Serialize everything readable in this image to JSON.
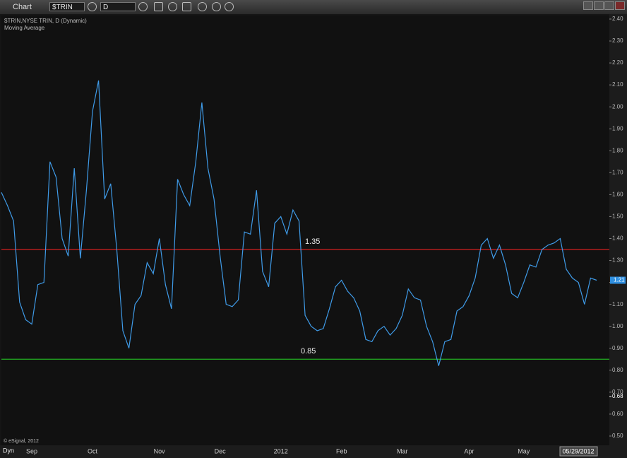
{
  "ui": {
    "window_title": "Chart",
    "symbol": "$TRIN",
    "interval": "D",
    "mode": "Dyn",
    "legend_lines": [
      "$TRIN,NYSE TRIN, D (Dynamic)",
      "Moving Average"
    ],
    "copyright": "© eSignal, 2012"
  },
  "chart_data": {
    "type": "line",
    "categories": [
      null,
      null,
      null,
      null,
      null,
      "Sep",
      null,
      null,
      null,
      null,
      null,
      null,
      null,
      null,
      null,
      "Oct",
      null,
      null,
      null,
      null,
      null,
      null,
      null,
      null,
      null,
      null,
      "Nov",
      null,
      null,
      null,
      null,
      null,
      null,
      null,
      null,
      null,
      "Dec",
      null,
      null,
      null,
      null,
      null,
      null,
      null,
      null,
      null,
      "2012",
      null,
      null,
      null,
      null,
      null,
      null,
      null,
      null,
      null,
      "Feb",
      null,
      null,
      null,
      null,
      null,
      null,
      null,
      null,
      null,
      "Mar",
      null,
      null,
      null,
      null,
      null,
      null,
      null,
      null,
      null,
      null,
      "Apr",
      null,
      null,
      null,
      null,
      null,
      null,
      null,
      null,
      "May",
      null,
      null,
      null,
      null,
      null,
      null,
      null,
      null,
      null,
      null,
      null,
      null
    ],
    "series": [
      {
        "name": "$TRIN,NYSE TRIN, D (Dynamic)",
        "color": "#3f9be8",
        "values": [
          1.61,
          1.55,
          1.48,
          1.11,
          1.03,
          1.01,
          1.19,
          1.2,
          1.75,
          1.68,
          1.4,
          1.32,
          1.72,
          1.31,
          1.62,
          1.98,
          2.12,
          1.58,
          1.65,
          1.35,
          0.98,
          0.9,
          1.1,
          1.14,
          1.29,
          1.24,
          1.4,
          1.19,
          1.08,
          1.67,
          1.6,
          1.55,
          1.75,
          2.02,
          1.72,
          1.58,
          1.32,
          1.1,
          1.09,
          1.12,
          1.43,
          1.42,
          1.62,
          1.25,
          1.18,
          1.47,
          1.5,
          1.42,
          1.53,
          1.48,
          1.05,
          1.0,
          0.98,
          0.99,
          1.08,
          1.18,
          1.21,
          1.16,
          1.13,
          1.07,
          0.94,
          0.93,
          0.98,
          1.0,
          0.96,
          0.99,
          1.05,
          1.17,
          1.13,
          1.12,
          1.0,
          0.93,
          0.82,
          0.93,
          0.94,
          1.07,
          1.09,
          1.14,
          1.22,
          1.37,
          1.4,
          1.31,
          1.37,
          1.28,
          1.15,
          1.13,
          1.2,
          1.28,
          1.27,
          1.35,
          1.37,
          1.38,
          1.4,
          1.26,
          1.22,
          1.2,
          1.1,
          1.22,
          1.21
        ]
      }
    ],
    "reference_lines": [
      {
        "value": 1.35,
        "color": "#d42020"
      },
      {
        "value": 0.85,
        "color": "#22b022"
      }
    ],
    "last_value": 1.21,
    "last_date": "05/29/2012",
    "y_marker": 0.68,
    "ylim": [
      0.458,
      2.416
    ],
    "yticks": [
      {
        "value": 0.5,
        "label": "0.50"
      },
      {
        "value": 0.6,
        "label": "0.60"
      },
      {
        "value": 0.7,
        "label": "0.70"
      },
      {
        "value": 0.8,
        "label": "0.80"
      },
      {
        "value": 0.9,
        "label": "0.90"
      },
      {
        "value": 1.0,
        "label": "1.00"
      },
      {
        "value": 1.1,
        "label": "1.10"
      },
      {
        "value": 1.2,
        "label": "1.20"
      },
      {
        "value": 1.3,
        "label": "1.30"
      },
      {
        "value": 1.4,
        "label": "1.40"
      },
      {
        "value": 1.5,
        "label": "1.50"
      },
      {
        "value": 1.6,
        "label": "1.60"
      },
      {
        "value": 1.7,
        "label": "1.70"
      },
      {
        "value": 1.8,
        "label": "1.80"
      },
      {
        "value": 1.9,
        "label": "1.90"
      },
      {
        "value": 2.0,
        "label": "2.00"
      },
      {
        "value": 2.1,
        "label": "2.10"
      },
      {
        "value": 2.2,
        "label": "2.20"
      },
      {
        "value": 2.3,
        "label": "2.30"
      },
      {
        "value": 2.4,
        "label": "2.40"
      }
    ],
    "grid": false
  }
}
